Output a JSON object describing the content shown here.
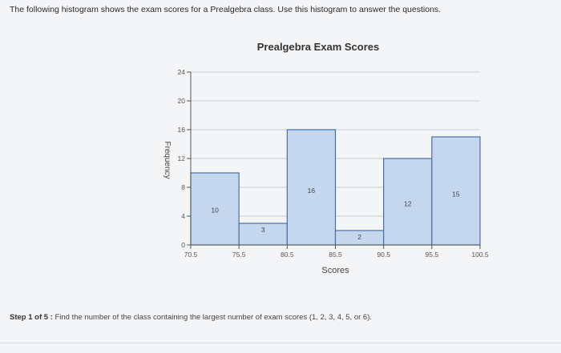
{
  "intro_text": "The following histogram shows the exam scores for a Prealgebra class. Use this histogram to answer the questions.",
  "step": {
    "label": "Step 1 of 5 :",
    "question": "Find the number of the class containing the largest number of exam scores (1, 2, 3, 4, 5, or 6)."
  },
  "chart_data": {
    "type": "bar",
    "title": "Prealgebra Exam Scores",
    "xlabel": "Scores",
    "ylabel": "Frequency",
    "x_ticks": [
      "70.5",
      "75.5",
      "80.5",
      "85.5",
      "90.5",
      "95.5",
      "100.5"
    ],
    "y_ticks": [
      "0",
      "4",
      "8",
      "12",
      "16",
      "20",
      "24"
    ],
    "ylim": [
      0,
      24
    ],
    "bins": [
      {
        "from": 70.5,
        "to": 75.5,
        "value": 10,
        "label": "10"
      },
      {
        "from": 75.5,
        "to": 80.5,
        "value": 3,
        "label": "3"
      },
      {
        "from": 80.5,
        "to": 85.5,
        "value": 16,
        "label": "16"
      },
      {
        "from": 85.5,
        "to": 90.5,
        "value": 2,
        "label": "2"
      },
      {
        "from": 90.5,
        "to": 95.5,
        "value": 12,
        "label": "12"
      },
      {
        "from": 95.5,
        "to": 100.5,
        "value": 15,
        "label": "15"
      }
    ],
    "grid": true,
    "bar_color": "#c5d6ef",
    "bar_edge_color": "#4a6ea8"
  }
}
